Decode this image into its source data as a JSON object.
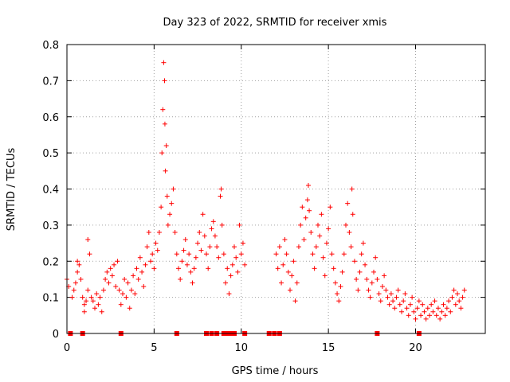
{
  "chart_data": {
    "type": "scatter",
    "title": "Day 323 of 2022, SRMTID for receiver xmis",
    "xlabel": "GPS time / hours",
    "ylabel": "SRMTID / TECUs",
    "xlim": [
      0,
      24
    ],
    "ylim": [
      0,
      0.8
    ],
    "xticks": [
      0,
      5,
      10,
      15,
      20
    ],
    "yticks": [
      0,
      0.1,
      0.2,
      0.3,
      0.4,
      0.5,
      0.6,
      0.7,
      0.8
    ],
    "xtick_labels": [
      "0",
      "5",
      "10",
      "15",
      "20"
    ],
    "ytick_labels": [
      "0",
      "0.1",
      "0.2",
      "0.3",
      "0.4",
      "0.5",
      "0.6",
      "0.7",
      "0.8"
    ],
    "grid": true,
    "marker": "plus",
    "color": "#ff0000",
    "series": [
      {
        "name": "SRMTID",
        "points": [
          [
            0.0,
            0.15
          ],
          [
            0.1,
            0.13
          ],
          [
            0.3,
            0.1
          ],
          [
            0.4,
            0.12
          ],
          [
            0.5,
            0.14
          ],
          [
            0.6,
            0.17
          ],
          [
            0.6,
            0.2
          ],
          [
            0.7,
            0.19
          ],
          [
            0.8,
            0.15
          ],
          [
            0.9,
            0.1
          ],
          [
            1.0,
            0.08
          ],
          [
            1.0,
            0.06
          ],
          [
            1.1,
            0.09
          ],
          [
            1.2,
            0.12
          ],
          [
            1.2,
            0.26
          ],
          [
            1.3,
            0.22
          ],
          [
            1.4,
            0.1
          ],
          [
            1.5,
            0.09
          ],
          [
            1.6,
            0.07
          ],
          [
            1.7,
            0.11
          ],
          [
            1.8,
            0.08
          ],
          [
            1.9,
            0.1
          ],
          [
            2.0,
            0.06
          ],
          [
            2.1,
            0.12
          ],
          [
            2.2,
            0.15
          ],
          [
            2.3,
            0.17
          ],
          [
            2.4,
            0.14
          ],
          [
            2.5,
            0.18
          ],
          [
            2.6,
            0.16
          ],
          [
            2.7,
            0.19
          ],
          [
            2.8,
            0.13
          ],
          [
            2.9,
            0.2
          ],
          [
            3.0,
            0.12
          ],
          [
            3.1,
            0.08
          ],
          [
            3.2,
            0.11
          ],
          [
            3.3,
            0.15
          ],
          [
            3.4,
            0.1
          ],
          [
            3.5,
            0.14
          ],
          [
            3.6,
            0.07
          ],
          [
            3.7,
            0.12
          ],
          [
            3.8,
            0.16
          ],
          [
            3.9,
            0.11
          ],
          [
            4.0,
            0.18
          ],
          [
            4.1,
            0.15
          ],
          [
            4.2,
            0.21
          ],
          [
            4.3,
            0.17
          ],
          [
            4.4,
            0.13
          ],
          [
            4.5,
            0.19
          ],
          [
            4.6,
            0.24
          ],
          [
            4.7,
            0.28
          ],
          [
            4.8,
            0.2
          ],
          [
            4.9,
            0.22
          ],
          [
            5.0,
            0.18
          ],
          [
            5.1,
            0.25
          ],
          [
            5.2,
            0.23
          ],
          [
            5.3,
            0.28
          ],
          [
            5.4,
            0.35
          ],
          [
            5.45,
            0.5
          ],
          [
            5.5,
            0.62
          ],
          [
            5.55,
            0.75
          ],
          [
            5.6,
            0.7
          ],
          [
            5.62,
            0.58
          ],
          [
            5.65,
            0.45
          ],
          [
            5.7,
            0.52
          ],
          [
            5.75,
            0.38
          ],
          [
            5.8,
            0.3
          ],
          [
            5.9,
            0.33
          ],
          [
            6.0,
            0.36
          ],
          [
            6.1,
            0.4
          ],
          [
            6.2,
            0.28
          ],
          [
            6.3,
            0.22
          ],
          [
            6.4,
            0.18
          ],
          [
            6.5,
            0.15
          ],
          [
            6.6,
            0.2
          ],
          [
            6.7,
            0.23
          ],
          [
            6.8,
            0.26
          ],
          [
            6.9,
            0.19
          ],
          [
            7.0,
            0.22
          ],
          [
            7.1,
            0.17
          ],
          [
            7.2,
            0.14
          ],
          [
            7.3,
            0.18
          ],
          [
            7.4,
            0.21
          ],
          [
            7.5,
            0.25
          ],
          [
            7.6,
            0.28
          ],
          [
            7.7,
            0.23
          ],
          [
            7.8,
            0.33
          ],
          [
            7.9,
            0.27
          ],
          [
            8.0,
            0.22
          ],
          [
            8.1,
            0.18
          ],
          [
            8.2,
            0.24
          ],
          [
            8.3,
            0.29
          ],
          [
            8.4,
            0.31
          ],
          [
            8.5,
            0.27
          ],
          [
            8.6,
            0.24
          ],
          [
            8.7,
            0.21
          ],
          [
            8.8,
            0.38
          ],
          [
            8.85,
            0.4
          ],
          [
            8.9,
            0.3
          ],
          [
            9.0,
            0.22
          ],
          [
            9.1,
            0.14
          ],
          [
            9.2,
            0.18
          ],
          [
            9.3,
            0.11
          ],
          [
            9.4,
            0.16
          ],
          [
            9.5,
            0.19
          ],
          [
            9.6,
            0.24
          ],
          [
            9.7,
            0.21
          ],
          [
            9.8,
            0.17
          ],
          [
            9.9,
            0.3
          ],
          [
            10.0,
            0.22
          ],
          [
            10.1,
            0.25
          ],
          [
            10.2,
            0.19
          ],
          [
            12.0,
            0.22
          ],
          [
            12.1,
            0.18
          ],
          [
            12.2,
            0.24
          ],
          [
            12.3,
            0.14
          ],
          [
            12.4,
            0.19
          ],
          [
            12.5,
            0.26
          ],
          [
            12.6,
            0.22
          ],
          [
            12.7,
            0.17
          ],
          [
            12.8,
            0.12
          ],
          [
            12.9,
            0.16
          ],
          [
            13.0,
            0.2
          ],
          [
            13.1,
            0.09
          ],
          [
            13.2,
            0.14
          ],
          [
            13.3,
            0.24
          ],
          [
            13.4,
            0.3
          ],
          [
            13.5,
            0.35
          ],
          [
            13.6,
            0.26
          ],
          [
            13.7,
            0.32
          ],
          [
            13.8,
            0.37
          ],
          [
            13.85,
            0.41
          ],
          [
            13.9,
            0.34
          ],
          [
            14.0,
            0.28
          ],
          [
            14.1,
            0.22
          ],
          [
            14.2,
            0.18
          ],
          [
            14.3,
            0.24
          ],
          [
            14.4,
            0.3
          ],
          [
            14.5,
            0.27
          ],
          [
            14.6,
            0.33
          ],
          [
            14.7,
            0.21
          ],
          [
            14.8,
            0.16
          ],
          [
            14.9,
            0.25
          ],
          [
            15.0,
            0.29
          ],
          [
            15.1,
            0.35
          ],
          [
            15.2,
            0.22
          ],
          [
            15.3,
            0.18
          ],
          [
            15.4,
            0.14
          ],
          [
            15.5,
            0.11
          ],
          [
            15.6,
            0.09
          ],
          [
            15.7,
            0.13
          ],
          [
            15.8,
            0.17
          ],
          [
            15.9,
            0.22
          ],
          [
            16.0,
            0.3
          ],
          [
            16.1,
            0.36
          ],
          [
            16.2,
            0.28
          ],
          [
            16.3,
            0.24
          ],
          [
            16.35,
            0.4
          ],
          [
            16.4,
            0.33
          ],
          [
            16.5,
            0.2
          ],
          [
            16.6,
            0.15
          ],
          [
            16.7,
            0.12
          ],
          [
            16.8,
            0.17
          ],
          [
            16.9,
            0.22
          ],
          [
            17.0,
            0.25
          ],
          [
            17.1,
            0.19
          ],
          [
            17.2,
            0.15
          ],
          [
            17.3,
            0.12
          ],
          [
            17.4,
            0.1
          ],
          [
            17.5,
            0.14
          ],
          [
            17.6,
            0.17
          ],
          [
            17.7,
            0.21
          ],
          [
            17.8,
            0.15
          ],
          [
            17.9,
            0.11
          ],
          [
            18.0,
            0.09
          ],
          [
            18.1,
            0.13
          ],
          [
            18.2,
            0.16
          ],
          [
            18.3,
            0.12
          ],
          [
            18.4,
            0.1
          ],
          [
            18.5,
            0.08
          ],
          [
            18.6,
            0.11
          ],
          [
            18.7,
            0.09
          ],
          [
            18.8,
            0.07
          ],
          [
            18.9,
            0.1
          ],
          [
            19.0,
            0.12
          ],
          [
            19.1,
            0.08
          ],
          [
            19.2,
            0.06
          ],
          [
            19.3,
            0.09
          ],
          [
            19.4,
            0.11
          ],
          [
            19.5,
            0.07
          ],
          [
            19.6,
            0.05
          ],
          [
            19.7,
            0.08
          ],
          [
            19.8,
            0.1
          ],
          [
            19.9,
            0.06
          ],
          [
            20.0,
            0.04
          ],
          [
            20.1,
            0.07
          ],
          [
            20.2,
            0.09
          ],
          [
            20.3,
            0.05
          ],
          [
            20.4,
            0.08
          ],
          [
            20.5,
            0.06
          ],
          [
            20.6,
            0.04
          ],
          [
            20.7,
            0.07
          ],
          [
            20.8,
            0.05
          ],
          [
            20.9,
            0.08
          ],
          [
            21.0,
            0.06
          ],
          [
            21.1,
            0.09
          ],
          [
            21.2,
            0.05
          ],
          [
            21.3,
            0.07
          ],
          [
            21.4,
            0.04
          ],
          [
            21.5,
            0.06
          ],
          [
            21.6,
            0.08
          ],
          [
            21.7,
            0.05
          ],
          [
            21.8,
            0.07
          ],
          [
            21.9,
            0.09
          ],
          [
            22.0,
            0.06
          ],
          [
            22.1,
            0.1
          ],
          [
            22.2,
            0.12
          ],
          [
            22.3,
            0.08
          ],
          [
            22.4,
            0.11
          ],
          [
            22.5,
            0.09
          ],
          [
            22.6,
            0.07
          ],
          [
            22.7,
            0.1
          ],
          [
            22.8,
            0.12
          ]
        ]
      }
    ],
    "zero_points_x": [
      0.2,
      0.9,
      3.1,
      6.3,
      8.0,
      8.3,
      8.6,
      9.0,
      9.2,
      9.4,
      9.6,
      10.2,
      11.6,
      11.9,
      12.2,
      17.8,
      20.2
    ]
  }
}
